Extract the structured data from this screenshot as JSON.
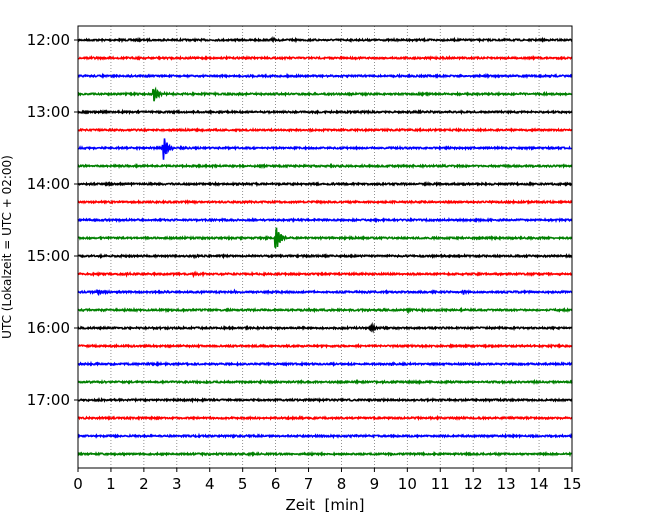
{
  "chart_data": {
    "type": "line",
    "subtype": "helicorder",
    "xlabel": "Zeit  [min]",
    "ylabel": "UTC (Lokalzeit = UTC + 02:00)",
    "xlim": [
      0,
      15
    ],
    "xticks": [
      "0",
      "1",
      "2",
      "3",
      "4",
      "5",
      "6",
      "7",
      "8",
      "9",
      "10",
      "11",
      "12",
      "13",
      "14",
      "15"
    ],
    "yticks": [
      "12:00",
      "13:00",
      "14:00",
      "15:00",
      "16:00",
      "17:00"
    ],
    "row_minutes": 15,
    "row_count": 24,
    "row_start_label": "12:00",
    "grid": "vertical-dotted",
    "colors": [
      "#000000",
      "#ff0000",
      "#0000ff",
      "#008000"
    ],
    "events": [
      {
        "row": 3,
        "minute": 2.3,
        "amplitude": 1.0
      },
      {
        "row": 6,
        "minute": 2.6,
        "amplitude": 1.4
      },
      {
        "row": 11,
        "minute": 6.0,
        "amplitude": 1.6
      },
      {
        "row": 16,
        "minute": 8.9,
        "amplitude": 0.45
      },
      {
        "row": 0,
        "minute": 5.9,
        "amplitude": 0.2
      },
      {
        "row": 2,
        "minute": 10.5,
        "amplitude": 0.2
      },
      {
        "row": 13,
        "minute": 1.5,
        "amplitude": 0.2
      },
      {
        "row": 13,
        "minute": 3.5,
        "amplitude": 0.15
      },
      {
        "row": 14,
        "minute": 0.6,
        "amplitude": 0.25
      },
      {
        "row": 14,
        "minute": 4.7,
        "amplitude": 0.15
      },
      {
        "row": 14,
        "minute": 11.7,
        "amplitude": 0.25
      },
      {
        "row": 15,
        "minute": 7.0,
        "amplitude": 0.15
      },
      {
        "row": 15,
        "minute": 10.0,
        "amplitude": 0.25
      },
      {
        "row": 18,
        "minute": 9.5,
        "amplitude": 0.15
      },
      {
        "row": 12,
        "minute": 3.5,
        "amplitude": 0.15
      }
    ]
  }
}
